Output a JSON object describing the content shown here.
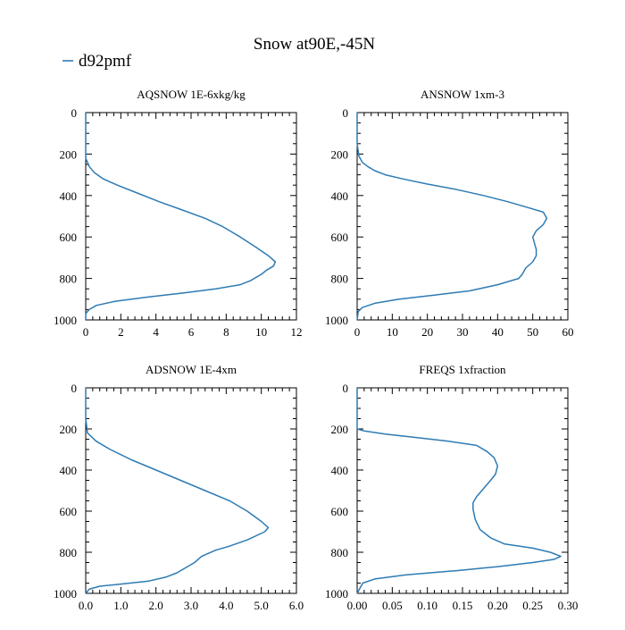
{
  "title": "Snow at90E,-45N",
  "legend": {
    "label": "d92pmf",
    "color": "#2E7BB4"
  },
  "chart_data": [
    {
      "type": "line",
      "title": "AQSNOW  1E-6xkg/kg",
      "xlim": [
        0,
        12
      ],
      "ylim": [
        1000,
        0
      ],
      "xticks": [
        "0",
        "2",
        "4",
        "6",
        "8",
        "10",
        "12"
      ],
      "yticks": [
        "0",
        "200",
        "400",
        "600",
        "800",
        "1000"
      ],
      "series": [
        {
          "name": "d92pmf",
          "points": [
            [
              0,
              0
            ],
            [
              0,
              150
            ],
            [
              0,
              220
            ],
            [
              0.2,
              260
            ],
            [
              0.5,
              290
            ],
            [
              1,
              320
            ],
            [
              1.8,
              350
            ],
            [
              3,
              390
            ],
            [
              4.2,
              430
            ],
            [
              5.5,
              470
            ],
            [
              6.8,
              510
            ],
            [
              7.8,
              550
            ],
            [
              8.8,
              600
            ],
            [
              9.7,
              650
            ],
            [
              10.4,
              690
            ],
            [
              10.8,
              720
            ],
            [
              10.7,
              740
            ],
            [
              10.3,
              760
            ],
            [
              10,
              780
            ],
            [
              9.8,
              790
            ],
            [
              9.4,
              810
            ],
            [
              8.8,
              830
            ],
            [
              7.4,
              850
            ],
            [
              5.6,
              870
            ],
            [
              3.5,
              890
            ],
            [
              1.7,
              910
            ],
            [
              0.6,
              930
            ],
            [
              0.2,
              950
            ],
            [
              0,
              970
            ],
            [
              0,
              1000
            ]
          ]
        }
      ]
    },
    {
      "type": "line",
      "title": "ANSNOW  1xm-3",
      "xlim": [
        0,
        60
      ],
      "ylim": [
        1000,
        0
      ],
      "xticks": [
        "0",
        "10",
        "20",
        "30",
        "40",
        "50",
        "60"
      ],
      "yticks": [
        "0",
        "200",
        "400",
        "600",
        "800",
        "1000"
      ],
      "series": [
        {
          "name": "d92pmf",
          "points": [
            [
              0,
              0
            ],
            [
              0,
              150
            ],
            [
              0.5,
              210
            ],
            [
              1.5,
              240
            ],
            [
              3,
              260
            ],
            [
              5,
              280
            ],
            [
              8,
              300
            ],
            [
              13,
              320
            ],
            [
              20,
              345
            ],
            [
              28,
              370
            ],
            [
              36,
              400
            ],
            [
              43,
              430
            ],
            [
              49,
              460
            ],
            [
              53,
              480
            ],
            [
              54,
              510
            ],
            [
              53,
              540
            ],
            [
              51,
              570
            ],
            [
              50,
              600
            ],
            [
              50.5,
              630
            ],
            [
              51,
              660
            ],
            [
              51,
              690
            ],
            [
              50,
              720
            ],
            [
              48,
              750
            ],
            [
              47,
              780
            ],
            [
              46,
              800
            ],
            [
              40,
              830
            ],
            [
              32,
              860
            ],
            [
              22,
              880
            ],
            [
              12,
              900
            ],
            [
              5,
              920
            ],
            [
              1.5,
              940
            ],
            [
              0.3,
              960
            ],
            [
              0,
              1000
            ]
          ]
        }
      ]
    },
    {
      "type": "line",
      "title": "ADSNOW  1E-4xm",
      "xlim": [
        0,
        6
      ],
      "ylim": [
        1000,
        0
      ],
      "xticks": [
        "0.0",
        "1.0",
        "2.0",
        "3.0",
        "4.0",
        "5.0",
        "6.0"
      ],
      "yticks": [
        "0",
        "200",
        "400",
        "600",
        "800",
        "1000"
      ],
      "series": [
        {
          "name": "d92pmf",
          "points": [
            [
              0,
              0
            ],
            [
              0,
              150
            ],
            [
              0.05,
              220
            ],
            [
              0.3,
              260
            ],
            [
              0.7,
              300
            ],
            [
              1.3,
              350
            ],
            [
              2,
              400
            ],
            [
              2.7,
              450
            ],
            [
              3.4,
              500
            ],
            [
              4.1,
              550
            ],
            [
              4.6,
              600
            ],
            [
              5,
              650
            ],
            [
              5.2,
              680
            ],
            [
              5.1,
              700
            ],
            [
              4.6,
              740
            ],
            [
              4.1,
              770
            ],
            [
              3.7,
              790
            ],
            [
              3.3,
              820
            ],
            [
              3.1,
              850
            ],
            [
              2.8,
              880
            ],
            [
              2.6,
              900
            ],
            [
              2.3,
              920
            ],
            [
              1.8,
              940
            ],
            [
              1,
              955
            ],
            [
              0.4,
              965
            ],
            [
              0.1,
              980
            ],
            [
              0,
              1000
            ]
          ]
        }
      ]
    },
    {
      "type": "line",
      "title": "FREQS  1xfraction",
      "xlim": [
        0,
        0.3
      ],
      "ylim": [
        1000,
        0
      ],
      "xticks": [
        "0.00",
        "0.05",
        "0.10",
        "0.15",
        "0.20",
        "0.25",
        "0.30"
      ],
      "yticks": [
        "0",
        "200",
        "400",
        "600",
        "800",
        "1000"
      ],
      "series": [
        {
          "name": "d92pmf",
          "points": [
            [
              0,
              0
            ],
            [
              0,
              150
            ],
            [
              0,
              200
            ],
            [
              0.01,
              210
            ],
            [
              0.04,
              225
            ],
            [
              0.08,
              240
            ],
            [
              0.13,
              260
            ],
            [
              0.17,
              280
            ],
            [
              0.185,
              310
            ],
            [
              0.195,
              340
            ],
            [
              0.2,
              380
            ],
            [
              0.197,
              420
            ],
            [
              0.19,
              450
            ],
            [
              0.18,
              490
            ],
            [
              0.17,
              530
            ],
            [
              0.165,
              560
            ],
            [
              0.165,
              590
            ],
            [
              0.168,
              640
            ],
            [
              0.175,
              690
            ],
            [
              0.19,
              730
            ],
            [
              0.21,
              760
            ],
            [
              0.25,
              780
            ],
            [
              0.275,
              800
            ],
            [
              0.29,
              820
            ],
            [
              0.28,
              835
            ],
            [
              0.25,
              850
            ],
            [
              0.2,
              870
            ],
            [
              0.14,
              890
            ],
            [
              0.07,
              910
            ],
            [
              0.025,
              930
            ],
            [
              0.008,
              950
            ],
            [
              0,
              1000
            ]
          ]
        }
      ]
    }
  ]
}
